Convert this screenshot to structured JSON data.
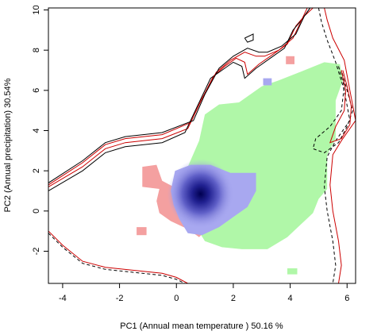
{
  "chart_data": {
    "type": "heatmap",
    "title": "",
    "xlabel": "PC1 (Annual mean temperature ) 50.16 %",
    "ylabel": "PC2 (Annual precipitation) 30.54%",
    "xlim": [
      -4.5,
      6.3
    ],
    "ylim": [
      -3.6,
      10.1
    ],
    "x_ticks": [
      -4,
      -2,
      0,
      2,
      4,
      6
    ],
    "y_ticks": [
      -2,
      0,
      2,
      4,
      6,
      8,
      10
    ],
    "legend": "none",
    "grid": false,
    "colors": {
      "niche_a": "#f4a0a0",
      "niche_b": "#b0f7a8",
      "overlap_low": "#a8a8f0",
      "overlap_high": "#000050",
      "env_a": "#cc0000",
      "env_b": "#000000"
    },
    "regions": [
      {
        "name": "niche A",
        "color": "#f4a0a0",
        "polygon": [
          [
            -1.2,
            2.2
          ],
          [
            -0.7,
            2.3
          ],
          [
            -0.5,
            1.5
          ],
          [
            -0.1,
            1.2
          ],
          [
            0.3,
            0.8
          ],
          [
            0.8,
            -0.3
          ],
          [
            1.0,
            -1.0
          ],
          [
            0.8,
            -1.3
          ],
          [
            0.4,
            -0.9
          ],
          [
            -0.2,
            -0.5
          ],
          [
            -0.6,
            -0.1
          ],
          [
            -0.7,
            0.5
          ],
          [
            -0.6,
            1.1
          ],
          [
            -1.2,
            1.2
          ]
        ]
      },
      {
        "name": "niche A patch 1",
        "color": "#f4a0a0",
        "polygon": [
          [
            -1.4,
            -0.8
          ],
          [
            -1.05,
            -0.8
          ],
          [
            -1.05,
            -1.2
          ],
          [
            -1.4,
            -1.2
          ]
        ]
      },
      {
        "name": "niche A patch 2",
        "color": "#f4a0a0",
        "polygon": [
          [
            3.85,
            7.7
          ],
          [
            4.15,
            7.7
          ],
          [
            4.15,
            7.3
          ],
          [
            3.85,
            7.3
          ]
        ]
      },
      {
        "name": "niche B",
        "color": "#b0f7a8",
        "polygon": [
          [
            0.2,
            1.2
          ],
          [
            0.4,
            2.2
          ],
          [
            0.8,
            3.5
          ],
          [
            1.0,
            4.8
          ],
          [
            1.5,
            5.3
          ],
          [
            2.2,
            5.4
          ],
          [
            3.0,
            6.2
          ],
          [
            3.6,
            6.5
          ],
          [
            4.5,
            7.0
          ],
          [
            5.2,
            7.4
          ],
          [
            5.75,
            7.3
          ],
          [
            5.85,
            6.5
          ],
          [
            5.6,
            5.5
          ],
          [
            5.6,
            4.5
          ],
          [
            5.6,
            3.6
          ],
          [
            5.3,
            2.8
          ],
          [
            5.3,
            2.2
          ],
          [
            5.3,
            1.1
          ],
          [
            5.0,
            0.6
          ],
          [
            4.8,
            -0.1
          ],
          [
            4.2,
            -0.9
          ],
          [
            3.9,
            -1.3
          ],
          [
            3.2,
            -1.9
          ],
          [
            2.3,
            -1.9
          ],
          [
            1.6,
            -1.8
          ],
          [
            1.0,
            -1.5
          ],
          [
            0.7,
            -0.8
          ],
          [
            0.7,
            0.0
          ],
          [
            0.3,
            0.3
          ]
        ]
      },
      {
        "name": "niche B patch",
        "color": "#b0f7a8",
        "polygon": [
          [
            3.9,
            -2.85
          ],
          [
            4.25,
            -2.85
          ],
          [
            4.25,
            -3.15
          ],
          [
            3.9,
            -3.15
          ]
        ]
      },
      {
        "name": "overlap",
        "color": "#a8a8f0",
        "polygon": [
          [
            -0.05,
            2.0
          ],
          [
            0.5,
            2.3
          ],
          [
            1.2,
            2.3
          ],
          [
            1.9,
            1.9
          ],
          [
            2.5,
            1.9
          ],
          [
            2.8,
            1.9
          ],
          [
            2.8,
            1.0
          ],
          [
            2.5,
            0.2
          ],
          [
            2.0,
            -0.3
          ],
          [
            1.5,
            -0.8
          ],
          [
            0.9,
            -1.2
          ],
          [
            0.4,
            -1.1
          ],
          [
            0.1,
            -0.4
          ],
          [
            -0.1,
            0.3
          ],
          [
            -0.2,
            1.0
          ]
        ]
      },
      {
        "name": "overlap patch",
        "color": "#a8a8f0",
        "polygon": [
          [
            3.05,
            6.6
          ],
          [
            3.35,
            6.6
          ],
          [
            3.35,
            6.25
          ],
          [
            3.05,
            6.25
          ]
        ]
      }
    ],
    "density_peak": {
      "x": 0.85,
      "y": 0.85
    },
    "contour_lines": [
      {
        "name": "env A outer",
        "color": "#cc0000",
        "dash": "solid",
        "points": [
          [
            -4.5,
            1.2
          ],
          [
            -3.3,
            2.2
          ],
          [
            -2.5,
            3.1
          ],
          [
            -1.8,
            3.4
          ],
          [
            -0.5,
            3.6
          ],
          [
            0.4,
            4.1
          ],
          [
            0.8,
            5.3
          ],
          [
            1.3,
            6.7
          ],
          [
            1.7,
            7.2
          ],
          [
            2.1,
            7.6
          ],
          [
            2.4,
            7.4
          ],
          [
            2.5,
            6.8
          ],
          [
            2.9,
            7.3
          ],
          [
            3.4,
            7.8
          ],
          [
            3.9,
            8.3
          ],
          [
            4.2,
            9.2
          ],
          [
            4.5,
            9.7
          ],
          [
            4.8,
            10.1
          ]
        ]
      },
      {
        "name": "env B outer",
        "color": "#000000",
        "dash": "solid",
        "points": [
          [
            -4.5,
            1.0
          ],
          [
            -3.3,
            2.0
          ],
          [
            -2.5,
            2.9
          ],
          [
            -1.8,
            3.2
          ],
          [
            -0.5,
            3.4
          ],
          [
            0.3,
            3.9
          ],
          [
            0.7,
            5.1
          ],
          [
            1.2,
            6.6
          ],
          [
            1.6,
            7.0
          ],
          [
            2.0,
            7.4
          ],
          [
            2.3,
            7.2
          ],
          [
            2.4,
            6.6
          ],
          [
            2.8,
            7.1
          ],
          [
            3.3,
            7.6
          ],
          [
            3.8,
            8.1
          ],
          [
            4.1,
            9.0
          ],
          [
            4.4,
            9.5
          ],
          [
            4.7,
            10.1
          ]
        ]
      },
      {
        "name": "env A inner",
        "color": "#cc0000",
        "dash": "solid",
        "points": [
          [
            -4.5,
            1.3
          ],
          [
            -3.3,
            2.4
          ],
          [
            -2.5,
            3.3
          ],
          [
            -1.8,
            3.6
          ],
          [
            -0.5,
            3.8
          ],
          [
            0.5,
            4.4
          ],
          [
            0.9,
            5.6
          ],
          [
            1.4,
            6.9
          ],
          [
            1.9,
            7.5
          ],
          [
            2.4,
            7.9
          ],
          [
            2.8,
            7.7
          ],
          [
            3.1,
            7.7
          ],
          [
            3.6,
            8.0
          ],
          [
            4.1,
            8.6
          ],
          [
            4.4,
            9.5
          ],
          [
            4.6,
            10.1
          ]
        ]
      },
      {
        "name": "env B inner",
        "color": "#000000",
        "dash": "solid",
        "points": [
          [
            -4.5,
            1.4
          ],
          [
            -3.3,
            2.5
          ],
          [
            -2.5,
            3.4
          ],
          [
            -1.8,
            3.7
          ],
          [
            -0.5,
            3.9
          ],
          [
            0.6,
            4.5
          ],
          [
            1.0,
            5.8
          ],
          [
            1.5,
            7.1
          ],
          [
            2.0,
            7.7
          ],
          [
            2.5,
            8.1
          ],
          [
            2.9,
            7.9
          ],
          [
            3.2,
            7.9
          ],
          [
            3.7,
            8.2
          ],
          [
            4.2,
            8.8
          ],
          [
            4.5,
            9.7
          ],
          [
            4.7,
            10.1
          ]
        ]
      },
      {
        "name": "env A lower",
        "color": "#cc0000",
        "dash": "solid",
        "points": [
          [
            -4.5,
            -1.0
          ],
          [
            -4.0,
            -1.7
          ],
          [
            -3.3,
            -2.5
          ],
          [
            -2.5,
            -2.8
          ],
          [
            -1.5,
            -2.95
          ],
          [
            -0.5,
            -3.1
          ],
          [
            0.0,
            -3.3
          ],
          [
            0.4,
            -3.6
          ]
        ]
      },
      {
        "name": "env B lower",
        "color": "#000000",
        "dash": "dashed",
        "points": [
          [
            -4.5,
            -1.1
          ],
          [
            -4.0,
            -1.8
          ],
          [
            -3.3,
            -2.6
          ],
          [
            -2.5,
            -2.9
          ],
          [
            -1.5,
            -3.05
          ],
          [
            -0.5,
            -3.2
          ],
          [
            0.0,
            -3.4
          ],
          [
            0.3,
            -3.6
          ]
        ]
      },
      {
        "name": "env right A",
        "color": "#cc0000",
        "dash": "solid",
        "points": [
          [
            5.2,
            10.1
          ],
          [
            5.3,
            9.5
          ],
          [
            5.5,
            8.6
          ],
          [
            5.9,
            7.5
          ],
          [
            6.1,
            6.0
          ],
          [
            6.3,
            4.5
          ],
          [
            5.8,
            3.5
          ],
          [
            5.5,
            2.8
          ],
          [
            5.4,
            1.3
          ],
          [
            5.5,
            0.0
          ],
          [
            5.7,
            -1.5
          ],
          [
            5.8,
            -2.7
          ],
          [
            5.7,
            -3.6
          ]
        ]
      },
      {
        "name": "env right B",
        "color": "#000000",
        "dash": "dashed",
        "points": [
          [
            5.0,
            10.1
          ],
          [
            5.1,
            9.4
          ],
          [
            5.3,
            8.5
          ],
          [
            5.6,
            7.4
          ],
          [
            5.9,
            6.0
          ],
          [
            6.1,
            4.5
          ],
          [
            5.6,
            3.5
          ],
          [
            5.3,
            2.7
          ],
          [
            5.2,
            1.2
          ],
          [
            5.3,
            0.0
          ],
          [
            5.5,
            -1.5
          ],
          [
            5.6,
            -2.7
          ],
          [
            5.5,
            -3.6
          ]
        ]
      },
      {
        "name": "env inner loop",
        "color": "#000000",
        "dash": "dashed",
        "points": [
          [
            5.7,
            7.2
          ],
          [
            5.9,
            6.2
          ],
          [
            5.8,
            5.0
          ],
          [
            5.4,
            4.2
          ],
          [
            4.9,
            3.6
          ],
          [
            4.8,
            3.1
          ],
          [
            5.2,
            2.9
          ],
          [
            5.7,
            3.4
          ],
          [
            6.0,
            4.2
          ],
          [
            6.2,
            5.0
          ],
          [
            6.0,
            6.0
          ],
          [
            5.8,
            7.0
          ]
        ]
      },
      {
        "name": "env inner loop A",
        "color": "#cc0000",
        "dash": "solid",
        "points": [
          [
            5.8,
            7.0
          ],
          [
            5.95,
            6.0
          ],
          [
            5.9,
            5.0
          ],
          [
            5.6,
            4.2
          ],
          [
            5.4,
            3.4
          ],
          [
            5.8,
            3.6
          ],
          [
            6.1,
            4.3
          ],
          [
            6.15,
            5.2
          ],
          [
            6.0,
            6.2
          ],
          [
            5.85,
            7.0
          ]
        ]
      },
      {
        "name": "small box",
        "color": "#000000",
        "dash": "solid",
        "points": [
          [
            2.4,
            8.6
          ],
          [
            2.7,
            8.8
          ],
          [
            2.7,
            8.5
          ],
          [
            2.5,
            8.4
          ],
          [
            2.4,
            8.6
          ]
        ]
      }
    ]
  }
}
